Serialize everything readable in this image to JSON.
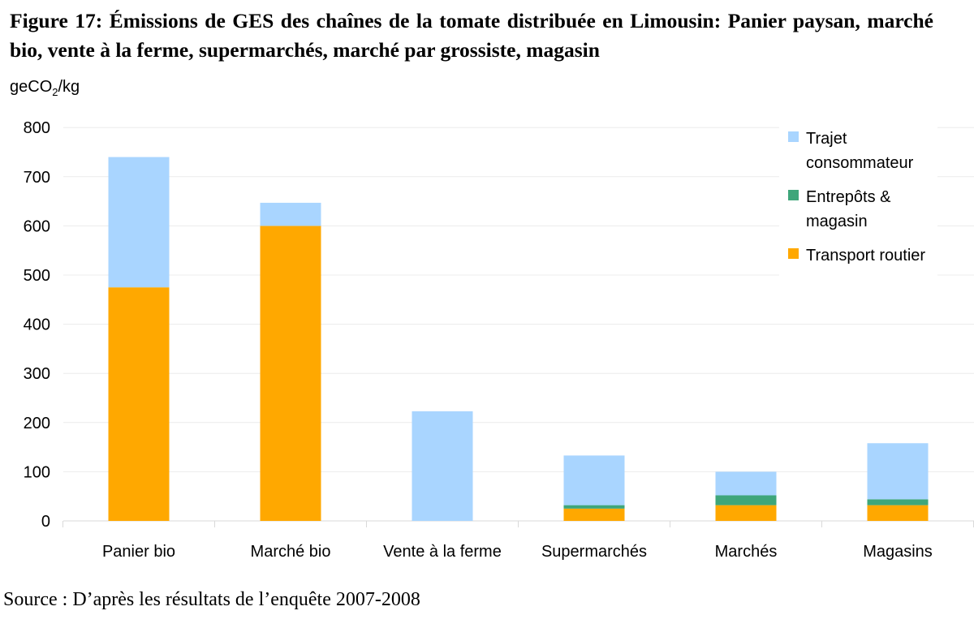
{
  "title": "Figure 17: Émissions de GES des chaînes de la tomate distribuée en Limousin: Panier paysan, marché bio, vente à la ferme, supermarchés, marché par grossiste, magasin",
  "ylabel_main": "geCO",
  "ylabel_sub": "2",
  "ylabel_unit": "/kg",
  "source": "Source : D’après les résultats de l’enquête 2007-2008",
  "chart_data": {
    "type": "bar",
    "stacked": true,
    "categories": [
      "Panier bio",
      "Marché bio",
      "Vente à la ferme",
      "Supermarchés",
      "Marchés",
      "Magasins"
    ],
    "series": [
      {
        "name": "Transport routier",
        "color": "#FFA800",
        "values": [
          475,
          600,
          0,
          25,
          32,
          32
        ]
      },
      {
        "name": "Entrepôts & magasin",
        "color": "#3EA67A",
        "values": [
          0,
          0,
          0,
          7,
          20,
          12
        ]
      },
      {
        "name": "Trajet consommateur",
        "color": "#A9D5FF",
        "values": [
          265,
          47,
          223,
          101,
          48,
          114
        ]
      }
    ],
    "legend_order": [
      "Trajet consommateur",
      "Entrepôts & magasin",
      "Transport routier"
    ],
    "legend_lines": [
      [
        "Trajet",
        "consommateur"
      ],
      [
        "Entrepôts &",
        "magasin"
      ],
      [
        "Transport routier"
      ]
    ],
    "ylabel": "geCO2/kg",
    "ylim": [
      0,
      800
    ],
    "yticks": [
      0,
      100,
      200,
      300,
      400,
      500,
      600,
      700,
      800
    ],
    "grid": true,
    "legend_position": "top-right"
  }
}
